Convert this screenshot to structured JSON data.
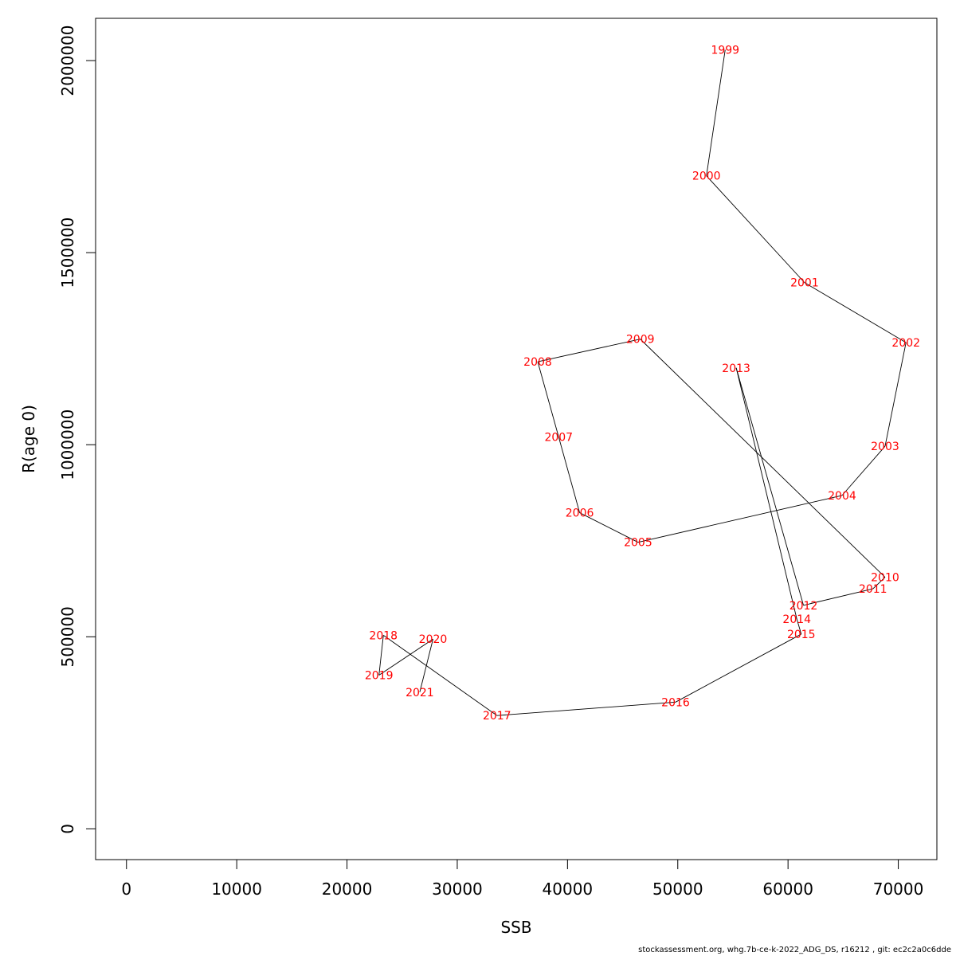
{
  "chart_data": {
    "type": "line",
    "xlabel": "SSB",
    "ylabel": "R(age 0)",
    "xlim": [
      -2800,
      73500
    ],
    "ylim": [
      -80000,
      2110000
    ],
    "x_ticks": [
      0,
      10000,
      20000,
      30000,
      40000,
      50000,
      60000,
      70000
    ],
    "x_tick_labels": [
      "0",
      "10000",
      "20000",
      "30000",
      "40000",
      "50000",
      "60000",
      "70000"
    ],
    "y_ticks": [
      0,
      500000,
      1000000,
      1500000,
      2000000
    ],
    "y_tick_labels": [
      "0",
      "500000",
      "1000000",
      "1500000",
      "2000000"
    ],
    "grid": false,
    "line_color": "#000000",
    "label_color": "#ff0000",
    "points": [
      {
        "label": "1999",
        "x": 54300,
        "y": 2028000
      },
      {
        "label": "2000",
        "x": 52600,
        "y": 1700000
      },
      {
        "label": "2001",
        "x": 61500,
        "y": 1422000
      },
      {
        "label": "2002",
        "x": 70700,
        "y": 1266000
      },
      {
        "label": "2003",
        "x": 68800,
        "y": 996000
      },
      {
        "label": "2004",
        "x": 64900,
        "y": 868000
      },
      {
        "label": "2005",
        "x": 46400,
        "y": 746000
      },
      {
        "label": "2006",
        "x": 41100,
        "y": 823000
      },
      {
        "label": "2007",
        "x": 39200,
        "y": 1020000
      },
      {
        "label": "2008",
        "x": 37300,
        "y": 1216000
      },
      {
        "label": "2009",
        "x": 46600,
        "y": 1275000
      },
      {
        "label": "2010",
        "x": 68800,
        "y": 655000
      },
      {
        "label": "2011",
        "x": 67700,
        "y": 625000
      },
      {
        "label": "2012",
        "x": 61400,
        "y": 582000
      },
      {
        "label": "2013",
        "x": 55300,
        "y": 1200000
      },
      {
        "label": "2014",
        "x": 60800,
        "y": 546000
      },
      {
        "label": "2015",
        "x": 61200,
        "y": 507000
      },
      {
        "label": "2016",
        "x": 49800,
        "y": 330000
      },
      {
        "label": "2017",
        "x": 33600,
        "y": 295000
      },
      {
        "label": "2018",
        "x": 23300,
        "y": 504000
      },
      {
        "label": "2019",
        "x": 22900,
        "y": 400000
      },
      {
        "label": "2020",
        "x": 27800,
        "y": 494000
      },
      {
        "label": "2021",
        "x": 26600,
        "y": 356000
      }
    ]
  },
  "footer": {
    "text": "stockassessment.org, whg.7b-ce-k-2022_ADG_DS, r16212 , git: ec2c2a0c6dde"
  }
}
